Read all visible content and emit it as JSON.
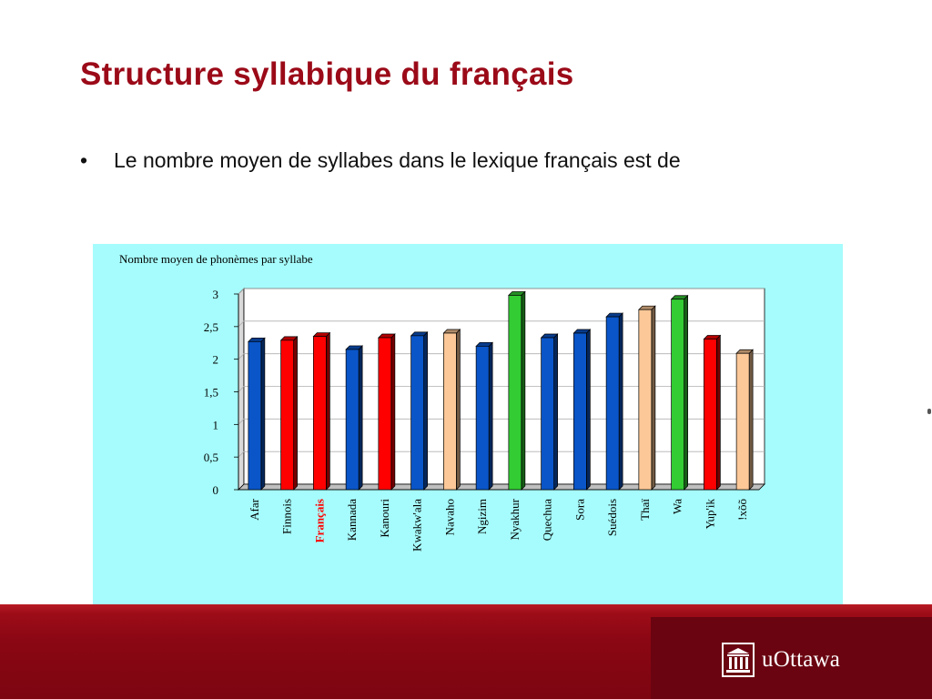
{
  "slide": {
    "title": "Structure syllabique du français",
    "bullet_text": "Le nombre moyen de syllabes dans le lexique français est de",
    "bullet_marker": "•"
  },
  "footer": {
    "logo_text": "uOttawa",
    "logo_icon": "university-building-icon",
    "colors": {
      "band": "#8a0713",
      "panel": "#6a0410"
    }
  },
  "chart_data": {
    "type": "bar",
    "title": "Nombre moyen de phonèmes par syllabe",
    "xlabel": "",
    "ylabel": "",
    "ylim": [
      0,
      3
    ],
    "yticks": [
      "0",
      "0,5",
      "1",
      "1,5",
      "2",
      "2,5",
      "3"
    ],
    "grid": true,
    "style": "3d",
    "categories": [
      "Afar",
      "Finnois",
      "Français",
      "Kannada",
      "Kanouri",
      "Kwakw'ala",
      "Navaho",
      "Ngizim",
      "Nyakhur",
      "Quechua",
      "Sora",
      "Suédois",
      "Thaï",
      "Wa",
      "Yup'ik",
      "!xõõ"
    ],
    "values": [
      2.27,
      2.29,
      2.35,
      2.15,
      2.33,
      2.36,
      2.4,
      2.2,
      2.98,
      2.33,
      2.4,
      2.65,
      2.76,
      2.92,
      2.31,
      2.09
    ],
    "colors": [
      "#0a55c8",
      "#ff0000",
      "#ff0000",
      "#0a55c8",
      "#ff0000",
      "#0a55c8",
      "#fcc898",
      "#0a55c8",
      "#33cc33",
      "#0a55c8",
      "#0a55c8",
      "#0a55c8",
      "#fcc898",
      "#33cc33",
      "#ff0000",
      "#fcc898"
    ],
    "highlight_category": "Français",
    "highlight_color": "#ff0000",
    "background": "#a6fcfc"
  }
}
